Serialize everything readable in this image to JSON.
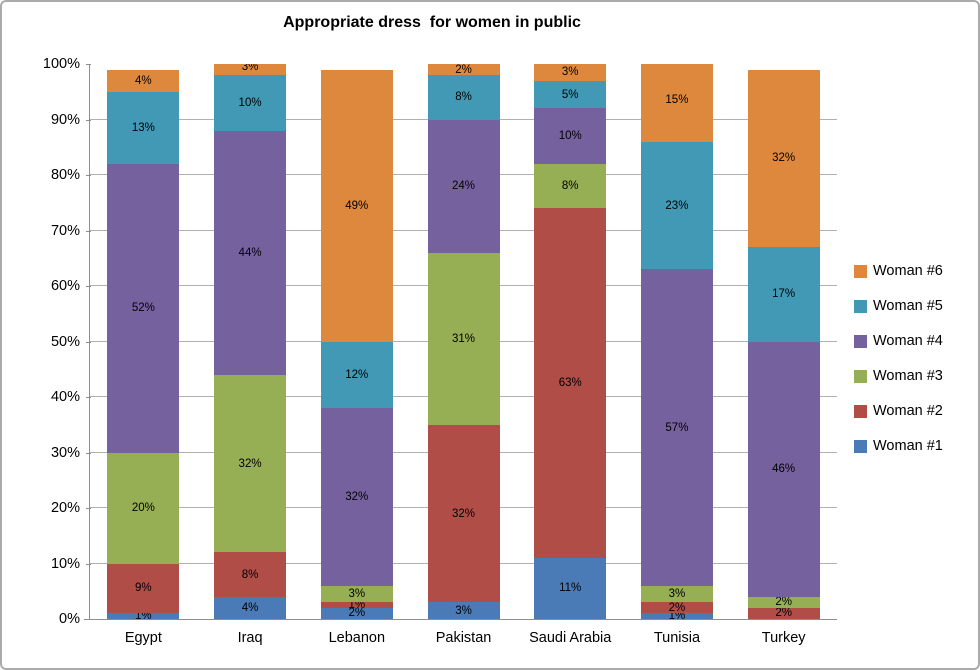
{
  "chart_data": {
    "type": "bar",
    "variant": "stacked-percent-column",
    "title": "Appropriate dress  for women in public",
    "categories": [
      "Egypt",
      "Iraq",
      "Lebanon",
      "Pakistan",
      "Saudi Arabia",
      "Tunisia",
      "Turkey"
    ],
    "series": [
      {
        "name": "Woman #1",
        "color": "#4a7bb7",
        "values": [
          1,
          4,
          2,
          3,
          11,
          1,
          0
        ]
      },
      {
        "name": "Woman #2",
        "color": "#b14d47",
        "values": [
          9,
          8,
          1,
          32,
          63,
          2,
          2
        ]
      },
      {
        "name": "Woman #3",
        "color": "#96ae54",
        "values": [
          20,
          32,
          3,
          31,
          8,
          3,
          2
        ]
      },
      {
        "name": "Woman #4",
        "color": "#76619f",
        "values": [
          52,
          44,
          32,
          24,
          10,
          57,
          46
        ]
      },
      {
        "name": "Woman #5",
        "color": "#4199b5",
        "values": [
          13,
          10,
          12,
          8,
          5,
          23,
          17
        ]
      },
      {
        "name": "Woman #6",
        "color": "#de883e",
        "values": [
          4,
          3,
          49,
          2,
          3,
          15,
          32
        ]
      }
    ],
    "data_label_suffix": "%",
    "ylim": [
      0,
      100
    ],
    "y_tick_step": 10,
    "y_tick_labels": [
      "0%",
      "10%",
      "20%",
      "30%",
      "40%",
      "50%",
      "60%",
      "70%",
      "80%",
      "90%",
      "100%"
    ],
    "grid": true,
    "legend_position": "right",
    "legend_order_top_to_bottom": [
      "Woman #6",
      "Woman #5",
      "Woman #4",
      "Woman #3",
      "Woman #2",
      "Woman #1"
    ]
  },
  "frame": {
    "background": "#ffffff",
    "border_color": "#ababab",
    "gridline_color": "#b0b0b0",
    "axis_color": "#8e8e8e"
  }
}
